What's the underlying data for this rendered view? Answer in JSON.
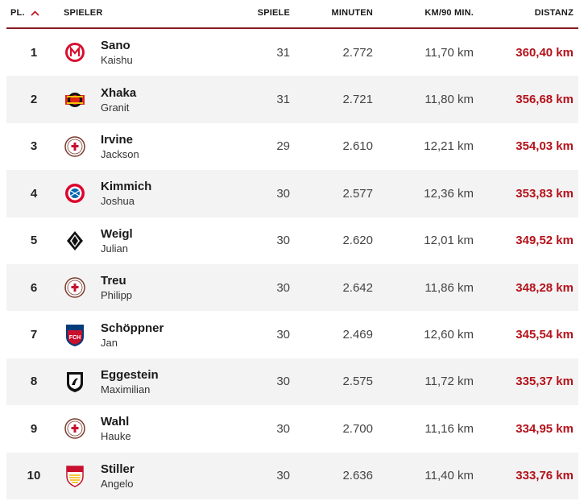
{
  "header": {
    "pos_label": "PL.",
    "player_label": "SPIELER",
    "games_label": "SPIELE",
    "minutes_label": "MINUTEN",
    "kmh_label": "KM/90 MIN.",
    "distance_label": "DISTANZ",
    "sort_icon": "chevron-up-icon"
  },
  "colors": {
    "accent": "#b5121b",
    "row_alt": "#f3f3f3",
    "divider": "#8a1c22"
  },
  "rows": [
    {
      "pos": "1",
      "last": "Sano",
      "first": "Kaishu",
      "games": "31",
      "minutes": "2.772",
      "kmh": "11,70 km",
      "distance": "360,40 km",
      "club_logo": "mainz-logo"
    },
    {
      "pos": "2",
      "last": "Xhaka",
      "first": "Granit",
      "games": "31",
      "minutes": "2.721",
      "kmh": "11,80 km",
      "distance": "356,68 km",
      "club_logo": "leverkusen-logo"
    },
    {
      "pos": "3",
      "last": "Irvine",
      "first": "Jackson",
      "games": "29",
      "minutes": "2.610",
      "kmh": "12,21 km",
      "distance": "354,03 km",
      "club_logo": "st-pauli-logo"
    },
    {
      "pos": "4",
      "last": "Kimmich",
      "first": "Joshua",
      "games": "30",
      "minutes": "2.577",
      "kmh": "12,36 km",
      "distance": "353,83 km",
      "club_logo": "bayern-logo"
    },
    {
      "pos": "5",
      "last": "Weigl",
      "first": "Julian",
      "games": "30",
      "minutes": "2.620",
      "kmh": "12,01 km",
      "distance": "349,52 km",
      "club_logo": "gladbach-logo"
    },
    {
      "pos": "6",
      "last": "Treu",
      "first": "Philipp",
      "games": "30",
      "minutes": "2.642",
      "kmh": "11,86 km",
      "distance": "348,28 km",
      "club_logo": "st-pauli-logo"
    },
    {
      "pos": "7",
      "last": "Schöppner",
      "first": "Jan",
      "games": "30",
      "minutes": "2.469",
      "kmh": "12,60 km",
      "distance": "345,54 km",
      "club_logo": "heidenheim-logo"
    },
    {
      "pos": "8",
      "last": "Eggestein",
      "first": "Maximilian",
      "games": "30",
      "minutes": "2.575",
      "kmh": "11,72 km",
      "distance": "335,37 km",
      "club_logo": "freiburg-logo"
    },
    {
      "pos": "9",
      "last": "Wahl",
      "first": "Hauke",
      "games": "30",
      "minutes": "2.700",
      "kmh": "11,16 km",
      "distance": "334,95 km",
      "club_logo": "st-pauli-logo"
    },
    {
      "pos": "10",
      "last": "Stiller",
      "first": "Angelo",
      "games": "30",
      "minutes": "2.636",
      "kmh": "11,40 km",
      "distance": "333,76 km",
      "club_logo": "stuttgart-logo"
    }
  ]
}
